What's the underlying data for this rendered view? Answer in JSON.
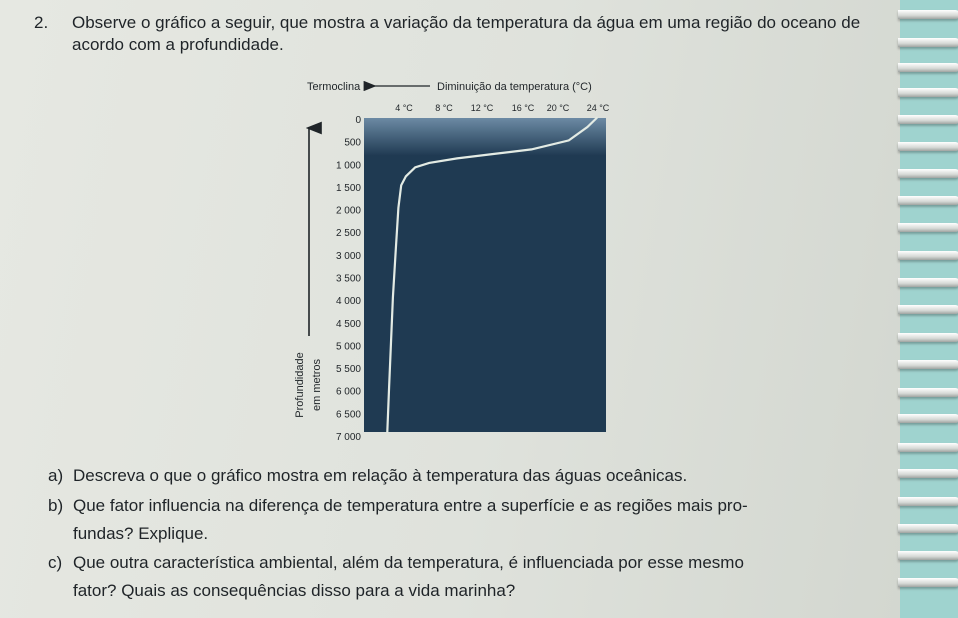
{
  "question": {
    "number": "2.",
    "text": "Observe o gráfico a seguir, que mostra a variação da temperatura da água em uma região do oceano de acordo com a profundidade."
  },
  "chart_data": {
    "type": "line",
    "annotation_left": "Termoclina",
    "annotation_right": "Diminuição da temperatura (°C)",
    "x_tick_labels": [
      "4 °C",
      "8 °C",
      "12 °C",
      "16 °C",
      "20 °C",
      "24 °C"
    ],
    "y_tick_labels": [
      "0",
      "500",
      "1 000",
      "1 500",
      "2 000",
      "2 500",
      "3 000",
      "3 500",
      "4 000",
      "4 500",
      "5 000",
      "5 500",
      "6 000",
      "6 500",
      "7 000"
    ],
    "ylabel_line1": "Profundidade",
    "ylabel_line2": "em metros",
    "xlim": [
      0,
      26
    ],
    "ylim": [
      0,
      7000
    ],
    "y_inverted": true,
    "series": [
      {
        "x": [
          25,
          24,
          22,
          18,
          14,
          10,
          7,
          5.5,
          4.5,
          4,
          3.7,
          3.4,
          3.1,
          2.9,
          2.7,
          2.6,
          2.5
        ],
        "y": [
          0,
          200,
          500,
          700,
          800,
          900,
          1000,
          1100,
          1300,
          1500,
          2000,
          3000,
          4000,
          5000,
          6000,
          6500,
          7000
        ]
      }
    ],
    "colors": {
      "deep": "#1f3a52",
      "surface": "#6c8aa4",
      "curve": "#e3ebe4"
    }
  },
  "items": [
    {
      "label": "a)",
      "lines": [
        "Descreva o que o gráfico mostra em relação à temperatura das águas oceânicas."
      ]
    },
    {
      "label": "b)",
      "lines": [
        "Que fator influencia na diferença de temperatura entre a superfície e as regiões mais pro-",
        "fundas? Explique."
      ]
    },
    {
      "label": "c)",
      "lines": [
        "Que outra característica ambiental, além da temperatura, é influenciada por esse mesmo",
        "fator? Quais as consequências disso para a vida marinha?"
      ]
    }
  ]
}
